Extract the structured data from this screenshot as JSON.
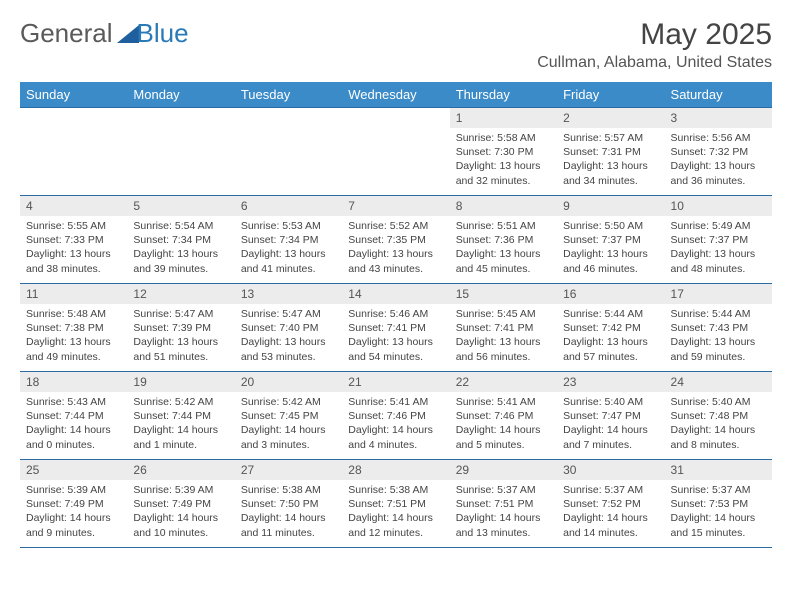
{
  "brand": {
    "part1": "General",
    "part2": "Blue"
  },
  "title": "May 2025",
  "location": "Cullman, Alabama, United States",
  "headers": [
    "Sunday",
    "Monday",
    "Tuesday",
    "Wednesday",
    "Thursday",
    "Friday",
    "Saturday"
  ],
  "colors": {
    "header_bg": "#3b8bc9",
    "header_text": "#ffffff",
    "row_border": "#2a6aa0",
    "daynum_bg": "#ececec",
    "text": "#444444",
    "logo_gray": "#5a5a5a",
    "logo_blue": "#2a7ab8",
    "page_bg": "#ffffff"
  },
  "weeks": [
    [
      null,
      null,
      null,
      null,
      {
        "n": "1",
        "sunrise": "5:58 AM",
        "sunset": "7:30 PM",
        "daylight": "13 hours and 32 minutes."
      },
      {
        "n": "2",
        "sunrise": "5:57 AM",
        "sunset": "7:31 PM",
        "daylight": "13 hours and 34 minutes."
      },
      {
        "n": "3",
        "sunrise": "5:56 AM",
        "sunset": "7:32 PM",
        "daylight": "13 hours and 36 minutes."
      }
    ],
    [
      {
        "n": "4",
        "sunrise": "5:55 AM",
        "sunset": "7:33 PM",
        "daylight": "13 hours and 38 minutes."
      },
      {
        "n": "5",
        "sunrise": "5:54 AM",
        "sunset": "7:34 PM",
        "daylight": "13 hours and 39 minutes."
      },
      {
        "n": "6",
        "sunrise": "5:53 AM",
        "sunset": "7:34 PM",
        "daylight": "13 hours and 41 minutes."
      },
      {
        "n": "7",
        "sunrise": "5:52 AM",
        "sunset": "7:35 PM",
        "daylight": "13 hours and 43 minutes."
      },
      {
        "n": "8",
        "sunrise": "5:51 AM",
        "sunset": "7:36 PM",
        "daylight": "13 hours and 45 minutes."
      },
      {
        "n": "9",
        "sunrise": "5:50 AM",
        "sunset": "7:37 PM",
        "daylight": "13 hours and 46 minutes."
      },
      {
        "n": "10",
        "sunrise": "5:49 AM",
        "sunset": "7:37 PM",
        "daylight": "13 hours and 48 minutes."
      }
    ],
    [
      {
        "n": "11",
        "sunrise": "5:48 AM",
        "sunset": "7:38 PM",
        "daylight": "13 hours and 49 minutes."
      },
      {
        "n": "12",
        "sunrise": "5:47 AM",
        "sunset": "7:39 PM",
        "daylight": "13 hours and 51 minutes."
      },
      {
        "n": "13",
        "sunrise": "5:47 AM",
        "sunset": "7:40 PM",
        "daylight": "13 hours and 53 minutes."
      },
      {
        "n": "14",
        "sunrise": "5:46 AM",
        "sunset": "7:41 PM",
        "daylight": "13 hours and 54 minutes."
      },
      {
        "n": "15",
        "sunrise": "5:45 AM",
        "sunset": "7:41 PM",
        "daylight": "13 hours and 56 minutes."
      },
      {
        "n": "16",
        "sunrise": "5:44 AM",
        "sunset": "7:42 PM",
        "daylight": "13 hours and 57 minutes."
      },
      {
        "n": "17",
        "sunrise": "5:44 AM",
        "sunset": "7:43 PM",
        "daylight": "13 hours and 59 minutes."
      }
    ],
    [
      {
        "n": "18",
        "sunrise": "5:43 AM",
        "sunset": "7:44 PM",
        "daylight": "14 hours and 0 minutes."
      },
      {
        "n": "19",
        "sunrise": "5:42 AM",
        "sunset": "7:44 PM",
        "daylight": "14 hours and 1 minute."
      },
      {
        "n": "20",
        "sunrise": "5:42 AM",
        "sunset": "7:45 PM",
        "daylight": "14 hours and 3 minutes."
      },
      {
        "n": "21",
        "sunrise": "5:41 AM",
        "sunset": "7:46 PM",
        "daylight": "14 hours and 4 minutes."
      },
      {
        "n": "22",
        "sunrise": "5:41 AM",
        "sunset": "7:46 PM",
        "daylight": "14 hours and 5 minutes."
      },
      {
        "n": "23",
        "sunrise": "5:40 AM",
        "sunset": "7:47 PM",
        "daylight": "14 hours and 7 minutes."
      },
      {
        "n": "24",
        "sunrise": "5:40 AM",
        "sunset": "7:48 PM",
        "daylight": "14 hours and 8 minutes."
      }
    ],
    [
      {
        "n": "25",
        "sunrise": "5:39 AM",
        "sunset": "7:49 PM",
        "daylight": "14 hours and 9 minutes."
      },
      {
        "n": "26",
        "sunrise": "5:39 AM",
        "sunset": "7:49 PM",
        "daylight": "14 hours and 10 minutes."
      },
      {
        "n": "27",
        "sunrise": "5:38 AM",
        "sunset": "7:50 PM",
        "daylight": "14 hours and 11 minutes."
      },
      {
        "n": "28",
        "sunrise": "5:38 AM",
        "sunset": "7:51 PM",
        "daylight": "14 hours and 12 minutes."
      },
      {
        "n": "29",
        "sunrise": "5:37 AM",
        "sunset": "7:51 PM",
        "daylight": "14 hours and 13 minutes."
      },
      {
        "n": "30",
        "sunrise": "5:37 AM",
        "sunset": "7:52 PM",
        "daylight": "14 hours and 14 minutes."
      },
      {
        "n": "31",
        "sunrise": "5:37 AM",
        "sunset": "7:53 PM",
        "daylight": "14 hours and 15 minutes."
      }
    ]
  ],
  "labels": {
    "sunrise_prefix": "Sunrise: ",
    "sunset_prefix": "Sunset: ",
    "daylight_prefix": "Daylight: "
  }
}
